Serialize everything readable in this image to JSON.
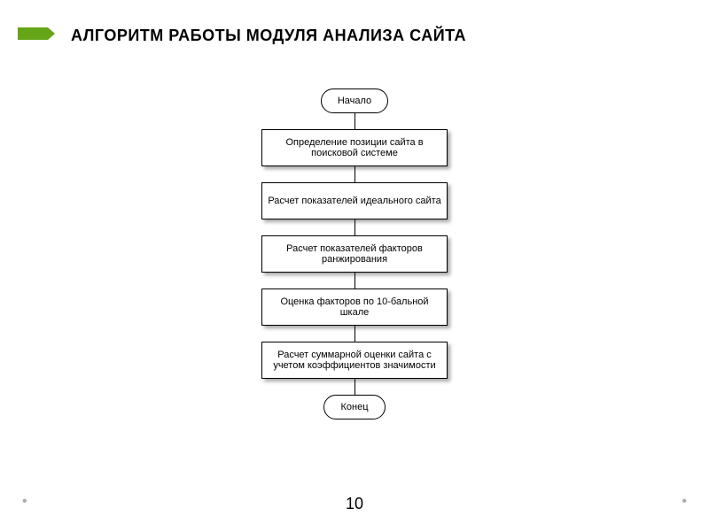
{
  "header": {
    "stripe_color": "#65a518",
    "stripe_w": 42,
    "stripe_h": 14,
    "notch": 8,
    "title": "АЛГОРИТМ РАБОТЫ МОДУЛЯ АНАЛИЗА САЙТА",
    "title_fontsize": 18,
    "title_color": "#000000"
  },
  "flowchart": {
    "type": "flowchart",
    "background_color": "#ffffff",
    "node_border_color": "#000000",
    "node_fill": "#ffffff",
    "shadow_color": "rgba(0,0,0,0.35)",
    "connector_color": "#000000",
    "connector_width": 1,
    "label_fontsize": 11,
    "label_color": "#000000",
    "step_width": 210,
    "step_height": 42,
    "terminator_height": 28,
    "gap": 18,
    "nodes": [
      {
        "id": "start",
        "shape": "terminator",
        "label": "Начало"
      },
      {
        "id": "s1",
        "shape": "process",
        "label": "Определение позиции сайта в поисковой системе"
      },
      {
        "id": "s2",
        "shape": "process",
        "label": "Расчет показателей идеального сайта"
      },
      {
        "id": "s3",
        "shape": "process",
        "label": "Расчет показателей факторов ранжирования"
      },
      {
        "id": "s4",
        "shape": "process",
        "label": "Оценка факторов по 10-бальной шкале"
      },
      {
        "id": "s5",
        "shape": "process",
        "label": "Расчет суммарной оценки сайта с учетом коэффициентов значимости"
      },
      {
        "id": "end",
        "shape": "terminator",
        "label": "Конец"
      }
    ],
    "edges": [
      [
        "start",
        "s1"
      ],
      [
        "s1",
        "s2"
      ],
      [
        "s2",
        "s3"
      ],
      [
        "s3",
        "s4"
      ],
      [
        "s4",
        "s5"
      ],
      [
        "s5",
        "end"
      ]
    ]
  },
  "page_number": "10",
  "dot_color": "#aaaaaa"
}
